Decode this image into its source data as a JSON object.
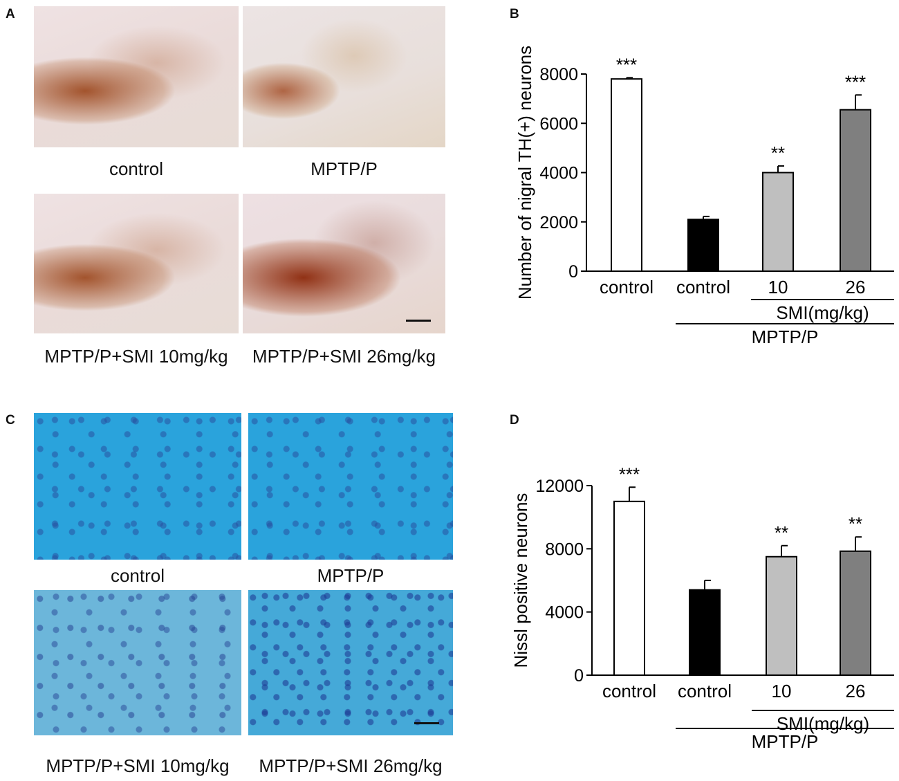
{
  "panels": {
    "A": {
      "letter": "A",
      "captions": [
        "control",
        "MPTP/P",
        "MPTP/P+SMI 10mg/kg",
        "MPTP/P+SMI 26mg/kg"
      ]
    },
    "C": {
      "letter": "C",
      "captions": [
        "control",
        "MPTP/P",
        "MPTP/P+SMI 10mg/kg",
        "MPTP/P+SMI 26mg/kg"
      ]
    },
    "B": {
      "letter": "B"
    },
    "D": {
      "letter": "D"
    }
  },
  "chart_data": [
    {
      "panel": "B",
      "type": "bar",
      "ylabel": "Number of nigral TH(+) neurons",
      "categories": [
        "control",
        "control",
        "10",
        "26"
      ],
      "values": [
        7800,
        2100,
        4000,
        6550
      ],
      "errors": [
        50,
        120,
        270,
        600
      ],
      "significance": [
        "***",
        "",
        "**",
        "***"
      ],
      "colors": [
        "#ffffff",
        "#000000",
        "#bfbfbf",
        "#7f7f7f"
      ],
      "yticks": [
        0,
        2000,
        4000,
        6000,
        8000
      ],
      "ylim": [
        0,
        8000
      ],
      "group_labels": {
        "smi": "SMI(mg/kg)",
        "mptp": "MPTP/P"
      }
    },
    {
      "panel": "D",
      "type": "bar",
      "ylabel": "Nissl positive neurons",
      "categories": [
        "control",
        "control",
        "10",
        "26"
      ],
      "values": [
        11000,
        5400,
        7500,
        7850
      ],
      "errors": [
        900,
        600,
        700,
        900
      ],
      "significance": [
        "***",
        "",
        "**",
        "**"
      ],
      "colors": [
        "#ffffff",
        "#000000",
        "#bfbfbf",
        "#7f7f7f"
      ],
      "yticks": [
        0,
        4000,
        8000,
        12000
      ],
      "ylim": [
        0,
        12000
      ],
      "group_labels": {
        "smi": "SMI(mg/kg)",
        "mptp": "MPTP/P"
      }
    }
  ]
}
